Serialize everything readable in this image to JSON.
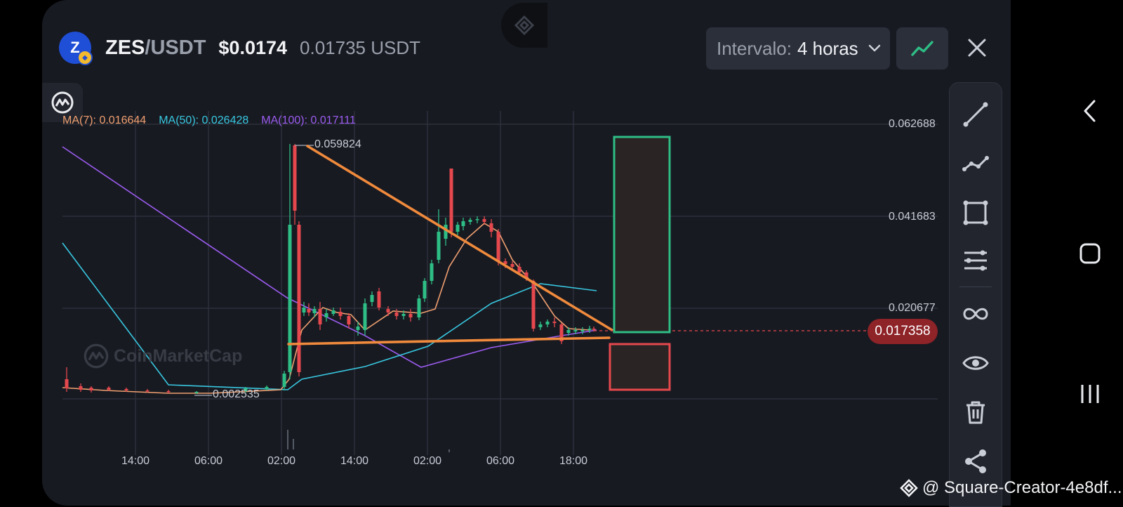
{
  "header": {
    "base": "ZES",
    "sep_quote": "/USDT",
    "price": "$0.0174",
    "price_sub": "0.01735 USDT",
    "logo_letter": "Z"
  },
  "controls": {
    "interval_label": "Intervalo:",
    "interval_value": "4 horas",
    "chart_type_icon": "line-chart-icon",
    "close_icon": "close-icon"
  },
  "indicators": {
    "ma7": "MA(7): 0.016644",
    "ma50": "MA(50): 0.026428",
    "ma100": "MA(100): 0.017111"
  },
  "price_axis": [
    "0.062688",
    "0.041683",
    "0.020677"
  ],
  "last_price": "0.017358",
  "time_axis": [
    "14:00",
    "06:00",
    "02:00",
    "14:00",
    "02:00",
    "06:00",
    "18:00"
  ],
  "annotations": {
    "high": "0.059824",
    "low": "0.002535"
  },
  "watermark": {
    "brand": "CoinMarketCap",
    "creator": "@ Square-Creator-4e8df..."
  },
  "toolbar": [
    "trend-line-icon",
    "polyline-icon",
    "rectangle-icon",
    "parallel-lines-icon",
    "infinity-icon",
    "eye-icon",
    "trash-icon",
    "share-icon"
  ],
  "colors": {
    "background": "#181a22",
    "up": "#2ebd85",
    "down": "#e5484d",
    "ma7": "#f0a070",
    "ma50": "#38c8e0",
    "ma100": "#9b5cf0",
    "trendline": "#f08a3c",
    "last_price_badge": "#8e2328"
  },
  "chart_data": {
    "type": "candlestick",
    "symbol": "ZES/USDT",
    "interval": "4 horas",
    "y_ticks": [
      0.062688,
      0.041683,
      0.020677
    ],
    "last_price": 0.017358,
    "high_label": 0.059824,
    "low_label": 0.002535,
    "x_ticks": [
      "14:00",
      "06:00",
      "02:00",
      "14:00",
      "02:00",
      "06:00",
      "18:00"
    ],
    "series": [
      {
        "name": "MA(7)",
        "last": 0.016644
      },
      {
        "name": "MA(50)",
        "last": 0.026428
      },
      {
        "name": "MA(100)",
        "last": 0.017111
      }
    ]
  }
}
